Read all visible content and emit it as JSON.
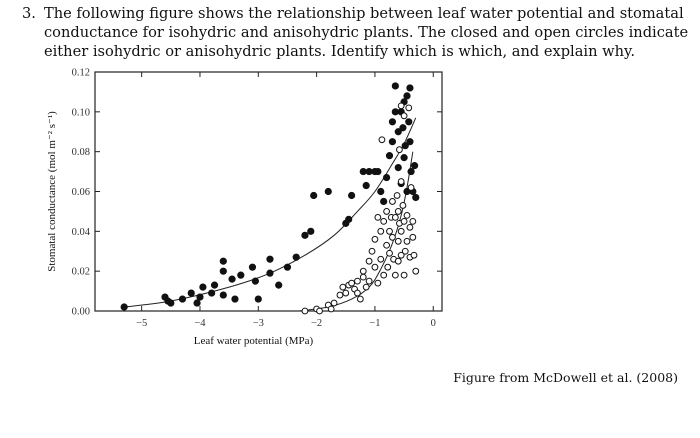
{
  "question": {
    "number": "3.",
    "text": "The following figure shows the relationship between leaf water potential and stomatal conductance for isohydric and anisohydric plants. The closed and open circles indicate either isohydric or anisohydric plants. Identify which is which, and explain why."
  },
  "caption": "Figure from McDowell et al. (2008)",
  "chart_data": {
    "type": "scatter",
    "title": "",
    "xlabel": "Leaf water potential (MPa)",
    "ylabel": "Stomatal conductance (mol m⁻² s⁻¹)",
    "xlim": [
      -5.8,
      0.15
    ],
    "ylim": [
      0,
      0.12
    ],
    "x_ticks": [
      -5,
      -4,
      -3,
      -2,
      -1,
      0
    ],
    "x_tick_labels": [
      "−5",
      "−4",
      "−3",
      "−2",
      "−1",
      "0"
    ],
    "y_ticks": [
      0,
      0.02,
      0.04,
      0.06,
      0.08,
      0.1,
      0.12
    ],
    "y_tick_labels": [
      "0.00",
      "0.02",
      "0.04",
      "0.06",
      "0.08",
      "0.10",
      "0.12"
    ],
    "series": [
      {
        "name": "closed circles",
        "marker": "filled",
        "color": "#111111",
        "points": [
          [
            -5.3,
            0.002
          ],
          [
            -4.6,
            0.007
          ],
          [
            -4.5,
            0.004
          ],
          [
            -4.55,
            0.005
          ],
          [
            -4.3,
            0.006
          ],
          [
            -4.15,
            0.009
          ],
          [
            -4.05,
            0.004
          ],
          [
            -3.95,
            0.012
          ],
          [
            -4.0,
            0.007
          ],
          [
            -3.8,
            0.009
          ],
          [
            -3.75,
            0.013
          ],
          [
            -3.6,
            0.008
          ],
          [
            -3.6,
            0.02
          ],
          [
            -3.6,
            0.025
          ],
          [
            -3.45,
            0.016
          ],
          [
            -3.4,
            0.006
          ],
          [
            -3.3,
            0.018
          ],
          [
            -3.1,
            0.022
          ],
          [
            -3.05,
            0.015
          ],
          [
            -3.0,
            0.006
          ],
          [
            -2.8,
            0.019
          ],
          [
            -2.8,
            0.026
          ],
          [
            -2.65,
            0.013
          ],
          [
            -2.5,
            0.022
          ],
          [
            -2.35,
            0.027
          ],
          [
            -2.2,
            0.038
          ],
          [
            -2.1,
            0.04
          ],
          [
            -2.05,
            0.058
          ],
          [
            -1.8,
            0.06
          ],
          [
            -1.5,
            0.044
          ],
          [
            -1.45,
            0.046
          ],
          [
            -1.4,
            0.058
          ],
          [
            -1.2,
            0.07
          ],
          [
            -1.15,
            0.063
          ],
          [
            -1.1,
            0.07
          ],
          [
            -1.0,
            0.07
          ],
          [
            -0.95,
            0.07
          ],
          [
            -0.9,
            0.06
          ],
          [
            -0.85,
            0.055
          ],
          [
            -0.8,
            0.067
          ],
          [
            -0.75,
            0.078
          ],
          [
            -0.7,
            0.085
          ],
          [
            -0.7,
            0.095
          ],
          [
            -0.65,
            0.1
          ],
          [
            -0.65,
            0.113
          ],
          [
            -0.6,
            0.09
          ],
          [
            -0.6,
            0.072
          ],
          [
            -0.55,
            0.064
          ],
          [
            -0.55,
            0.1
          ],
          [
            -0.52,
            0.092
          ],
          [
            -0.5,
            0.077
          ],
          [
            -0.5,
            0.105
          ],
          [
            -0.48,
            0.083
          ],
          [
            -0.45,
            0.06
          ],
          [
            -0.45,
            0.108
          ],
          [
            -0.42,
            0.095
          ],
          [
            -0.4,
            0.112
          ],
          [
            -0.4,
            0.085
          ],
          [
            -0.38,
            0.07
          ],
          [
            -0.35,
            0.06
          ],
          [
            -0.32,
            0.073
          ],
          [
            -0.3,
            0.057
          ]
        ]
      },
      {
        "name": "open circles",
        "marker": "open",
        "color": "#111111",
        "points": [
          [
            -2.2,
            0.0
          ],
          [
            -2.0,
            0.001
          ],
          [
            -1.95,
            0.0
          ],
          [
            -1.8,
            0.003
          ],
          [
            -1.75,
            0.001
          ],
          [
            -1.7,
            0.004
          ],
          [
            -1.6,
            0.008
          ],
          [
            -1.55,
            0.012
          ],
          [
            -1.5,
            0.009
          ],
          [
            -1.45,
            0.013
          ],
          [
            -1.4,
            0.014
          ],
          [
            -1.35,
            0.011
          ],
          [
            -1.3,
            0.015
          ],
          [
            -1.3,
            0.009
          ],
          [
            -1.25,
            0.006
          ],
          [
            -1.2,
            0.017
          ],
          [
            -1.2,
            0.02
          ],
          [
            -1.15,
            0.012
          ],
          [
            -1.1,
            0.025
          ],
          [
            -1.1,
            0.015
          ],
          [
            -1.05,
            0.03
          ],
          [
            -1.0,
            0.022
          ],
          [
            -1.0,
            0.036
          ],
          [
            -0.95,
            0.047
          ],
          [
            -0.95,
            0.014
          ],
          [
            -0.9,
            0.04
          ],
          [
            -0.9,
            0.026
          ],
          [
            -0.88,
            0.086
          ],
          [
            -0.85,
            0.045
          ],
          [
            -0.85,
            0.018
          ],
          [
            -0.8,
            0.05
          ],
          [
            -0.8,
            0.033
          ],
          [
            -0.78,
            0.022
          ],
          [
            -0.75,
            0.04
          ],
          [
            -0.75,
            0.029
          ],
          [
            -0.72,
            0.047
          ],
          [
            -0.7,
            0.055
          ],
          [
            -0.7,
            0.037
          ],
          [
            -0.68,
            0.026
          ],
          [
            -0.65,
            0.047
          ],
          [
            -0.65,
            0.018
          ],
          [
            -0.62,
            0.058
          ],
          [
            -0.6,
            0.05
          ],
          [
            -0.6,
            0.035
          ],
          [
            -0.6,
            0.025
          ],
          [
            -0.58,
            0.044
          ],
          [
            -0.58,
            0.081
          ],
          [
            -0.55,
            0.065
          ],
          [
            -0.55,
            0.04
          ],
          [
            -0.55,
            0.028
          ],
          [
            -0.52,
            0.053
          ],
          [
            -0.5,
            0.045
          ],
          [
            -0.5,
            0.018
          ],
          [
            -0.48,
            0.03
          ],
          [
            -0.45,
            0.048
          ],
          [
            -0.45,
            0.035
          ],
          [
            -0.42,
            0.102
          ],
          [
            -0.4,
            0.042
          ],
          [
            -0.4,
            0.027
          ],
          [
            -0.38,
            0.062
          ],
          [
            -0.35,
            0.037
          ],
          [
            -0.35,
            0.045
          ],
          [
            -0.33,
            0.028
          ],
          [
            -0.3,
            0.02
          ],
          [
            -0.55,
            0.103
          ],
          [
            -0.5,
            0.098
          ]
        ]
      }
    ],
    "curves": [
      {
        "name": "closed fit",
        "points": [
          [
            -5.3,
            0.002
          ],
          [
            -4.5,
            0.005
          ],
          [
            -3.5,
            0.012
          ],
          [
            -2.8,
            0.019
          ],
          [
            -2.2,
            0.028
          ],
          [
            -1.7,
            0.038
          ],
          [
            -1.3,
            0.05
          ],
          [
            -1.0,
            0.06
          ],
          [
            -0.7,
            0.074
          ],
          [
            -0.5,
            0.084
          ],
          [
            -0.3,
            0.097
          ]
        ]
      },
      {
        "name": "open fit",
        "points": [
          [
            -2.3,
            0.0
          ],
          [
            -1.8,
            0.002
          ],
          [
            -1.4,
            0.006
          ],
          [
            -1.1,
            0.012
          ],
          [
            -0.9,
            0.021
          ],
          [
            -0.7,
            0.034
          ],
          [
            -0.55,
            0.048
          ],
          [
            -0.45,
            0.062
          ],
          [
            -0.35,
            0.08
          ]
        ]
      }
    ]
  }
}
